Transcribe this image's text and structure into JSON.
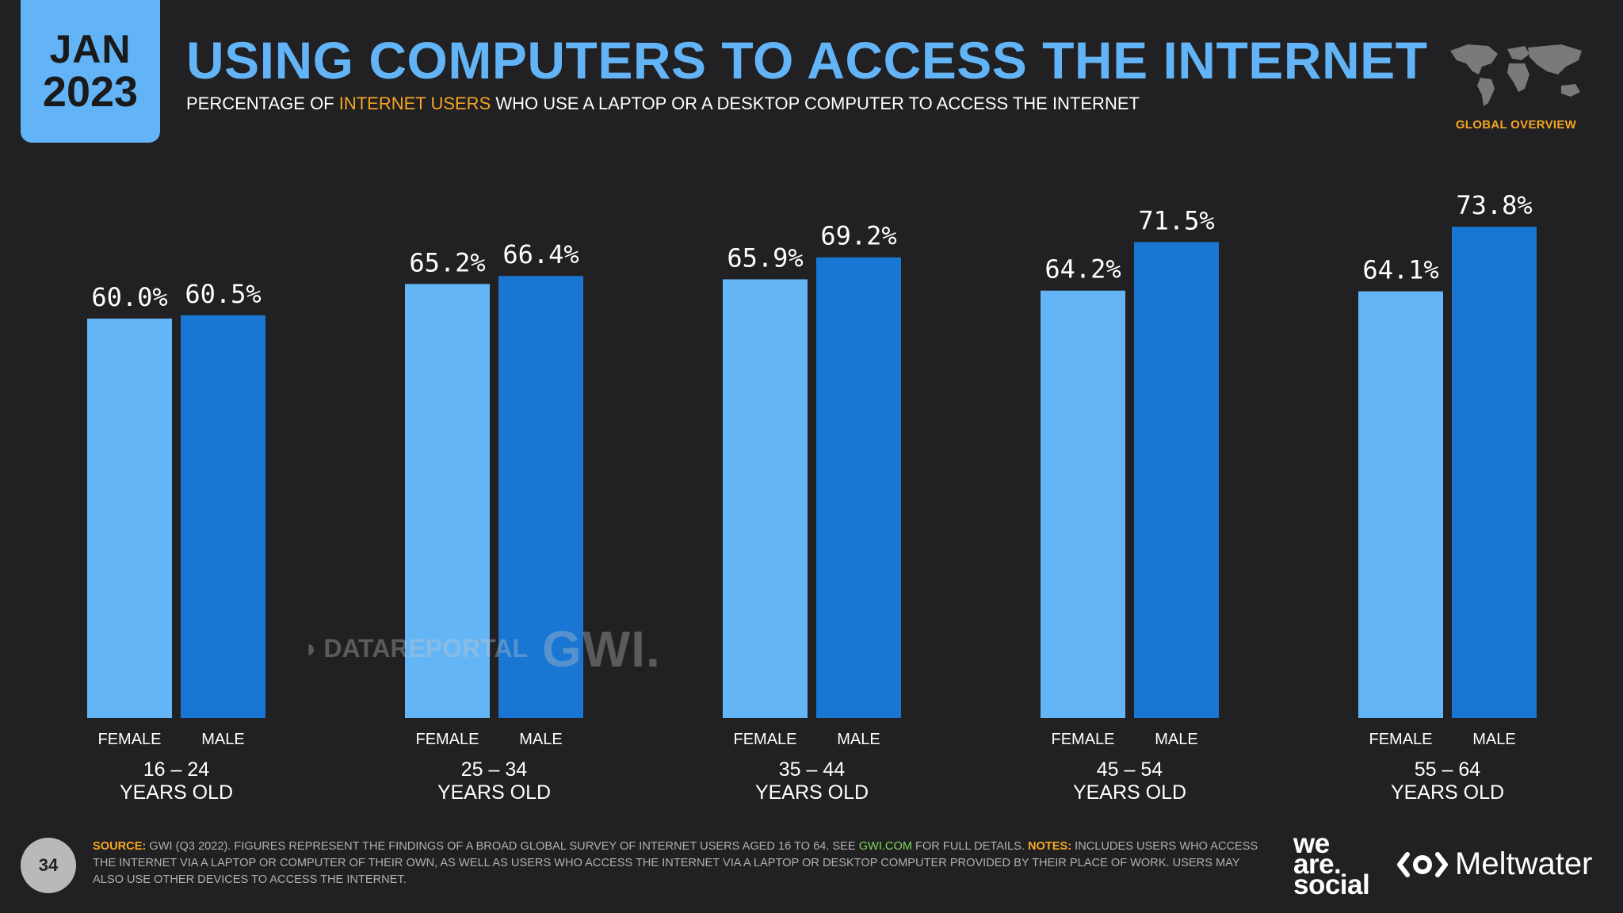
{
  "header": {
    "date_month": "JAN",
    "date_year": "2023",
    "title": "USING COMPUTERS TO ACCESS THE INTERNET",
    "subtitle_pre": "PERCENTAGE OF ",
    "subtitle_highlight": "INTERNET USERS",
    "subtitle_post": " WHO USE A LAPTOP OR A DESKTOP COMPUTER TO ACCESS THE INTERNET",
    "region_label": "GLOBAL OVERVIEW"
  },
  "colors": {
    "background": "#212022",
    "accent": "#62b4f7",
    "female": "#64b5f6",
    "male": "#1976d2",
    "highlight": "#f5a623"
  },
  "chart_data": {
    "type": "bar",
    "title": "USING COMPUTERS TO ACCESS THE INTERNET",
    "ylim": [
      0,
      100
    ],
    "categories": [
      {
        "line1": "16 – 24",
        "line2": "YEARS OLD"
      },
      {
        "line1": "25 – 34",
        "line2": "YEARS OLD"
      },
      {
        "line1": "35 – 44",
        "line2": "YEARS OLD"
      },
      {
        "line1": "45 – 54",
        "line2": "YEARS OLD"
      },
      {
        "line1": "55 – 64",
        "line2": "YEARS OLD"
      }
    ],
    "series": [
      {
        "name": "FEMALE",
        "values": [
          60.0,
          65.2,
          65.9,
          64.2,
          64.1
        ],
        "labels": [
          "60.0%",
          "65.2%",
          "65.9%",
          "64.2%",
          "64.1%"
        ]
      },
      {
        "name": "MALE",
        "values": [
          60.5,
          66.4,
          69.2,
          71.5,
          73.8
        ],
        "labels": [
          "60.5%",
          "66.4%",
          "69.2%",
          "71.5%",
          "73.8%"
        ]
      }
    ]
  },
  "watermarks": {
    "datareportal": "DATAREPORTAL",
    "gwi": "GWI."
  },
  "footer": {
    "page_number": "34",
    "source_label": "SOURCE:",
    "source_text": " GWI (Q3 2022). FIGURES REPRESENT THE FINDINGS OF A BROAD GLOBAL SURVEY OF INTERNET USERS AGED 16 TO 64. SEE ",
    "source_link": "GWI.COM",
    "source_after": " FOR FULL DETAILS. ",
    "notes_label": "NOTES:",
    "notes_text": " INCLUDES USERS WHO ACCESS THE INTERNET VIA A LAPTOP OR COMPUTER OF THEIR OWN, AS WELL AS USERS WHO ACCESS THE INTERNET VIA A LAPTOP OR DESKTOP COMPUTER PROVIDED BY THEIR PLACE OF WORK. USERS MAY ALSO USE OTHER DEVICES TO ACCESS THE INTERNET.",
    "brand_was_1": "we",
    "brand_was_2": "are.",
    "brand_was_3": "social",
    "brand_meltwater": "Meltwater"
  }
}
